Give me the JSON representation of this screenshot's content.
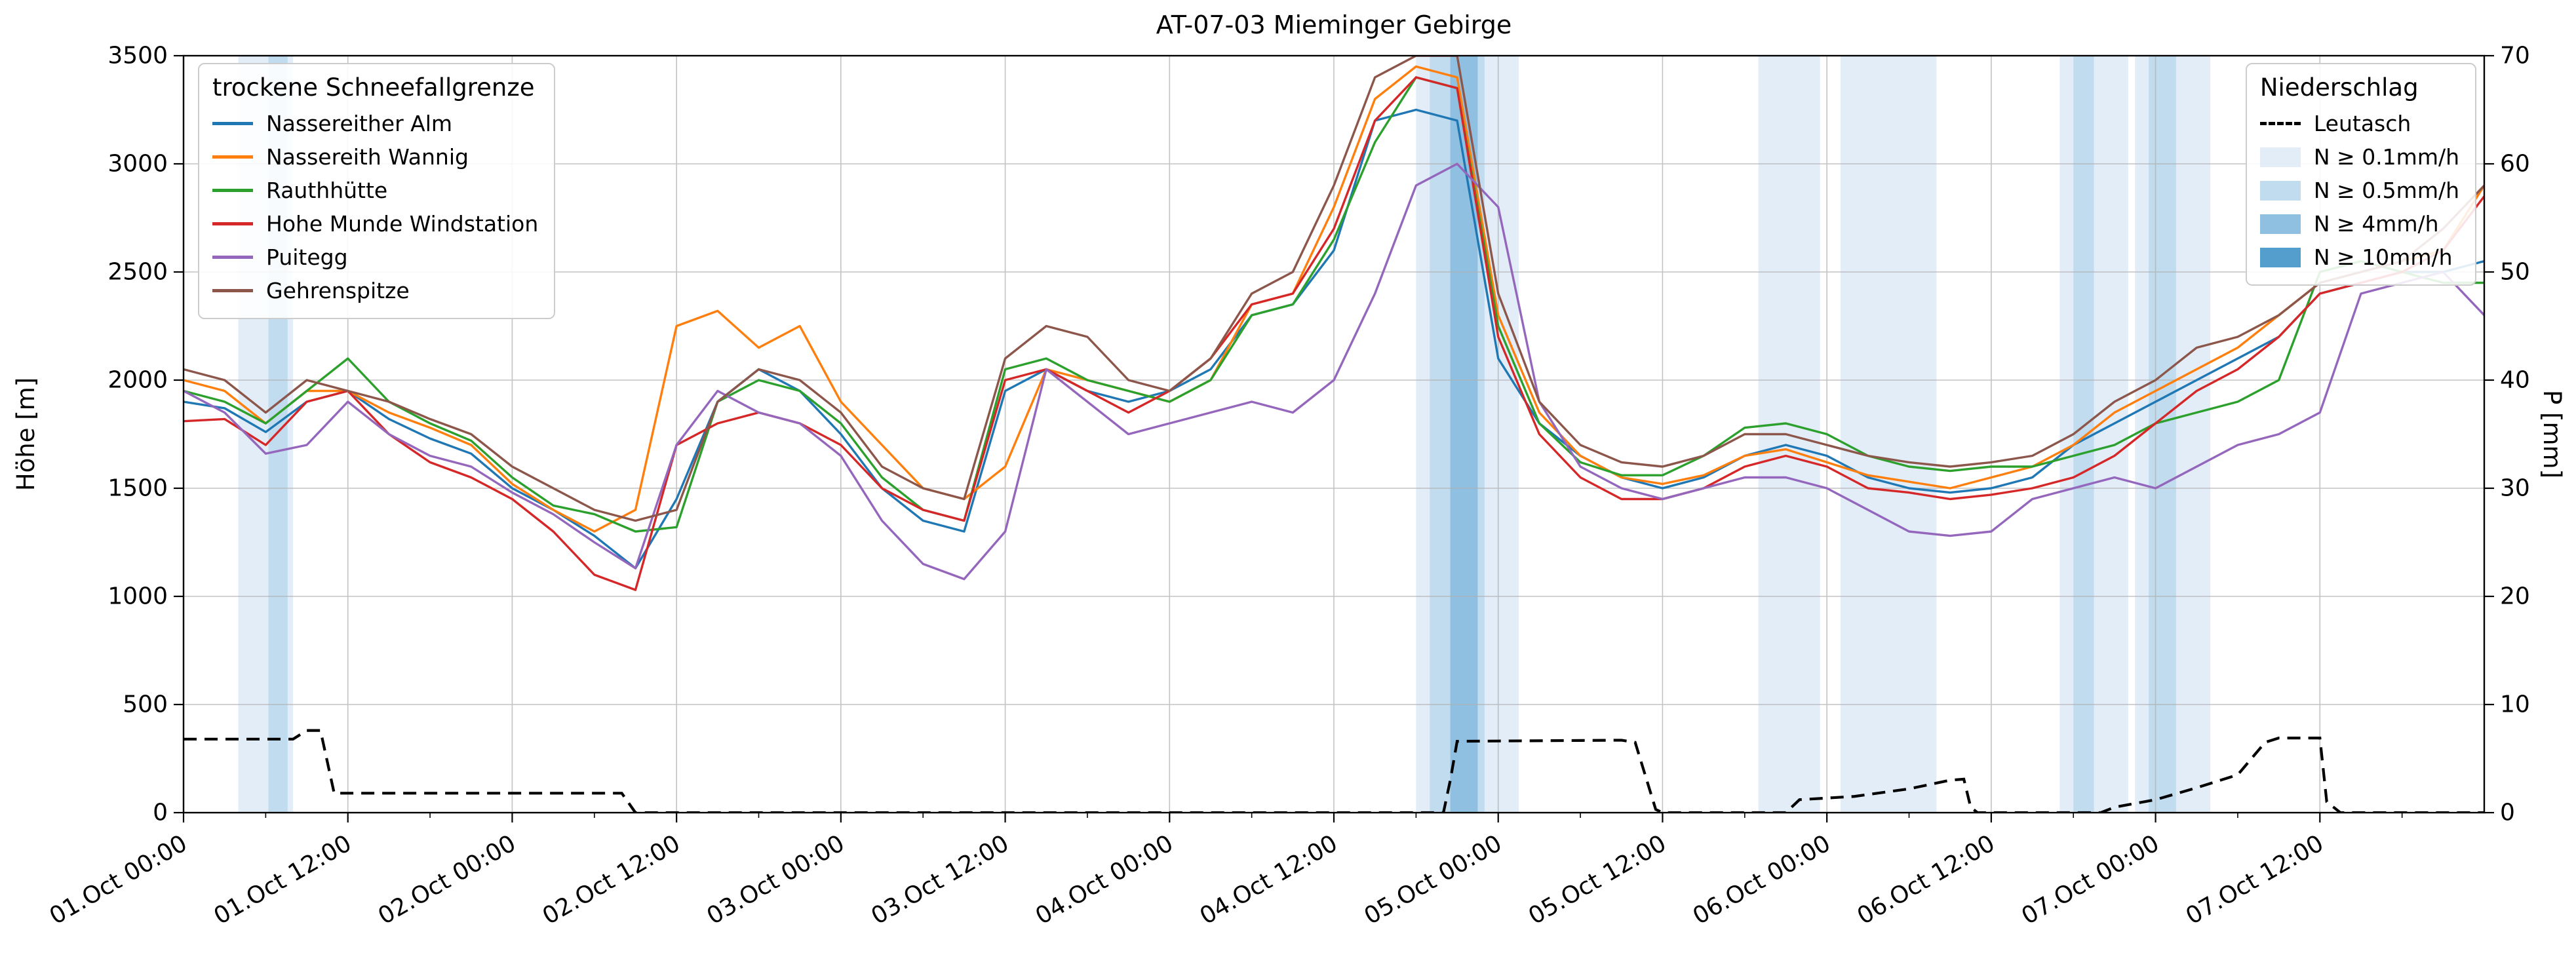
{
  "chart_data": {
    "type": "line",
    "title": "AT-07-03 Mieminger Gebirge",
    "ylabel_left": "Höhe [m]",
    "ylabel_right": "P [mm]",
    "ylim_left": [
      0,
      3500
    ],
    "ylim_right": [
      0,
      70
    ],
    "yticks_left": [
      0,
      500,
      1000,
      1500,
      2000,
      2500,
      3000,
      3500
    ],
    "yticks_right": [
      0,
      10,
      20,
      30,
      40,
      50,
      60,
      70
    ],
    "xlim_hours": [
      0,
      168
    ],
    "xtick_hours": [
      0,
      12,
      24,
      36,
      48,
      60,
      72,
      84,
      96,
      108,
      120,
      132,
      144,
      156
    ],
    "xtick_labels": [
      "01.Oct 00:00",
      "01.Oct 12:00",
      "02.Oct 00:00",
      "02.Oct 12:00",
      "03.Oct 00:00",
      "03.Oct 12:00",
      "04.Oct 00:00",
      "04.Oct 12:00",
      "05.Oct 00:00",
      "05.Oct 12:00",
      "06.Oct 00:00",
      "06.Oct 12:00",
      "07.Oct 00:00",
      "07.Oct 12:00"
    ],
    "grid": true,
    "legend_left": {
      "title": "trockene Schneefallgrenze"
    },
    "legend_right": {
      "title": "Niederschlag"
    },
    "x_hours": [
      0,
      3,
      6,
      9,
      12,
      15,
      18,
      21,
      24,
      27,
      30,
      33,
      36,
      39,
      42,
      45,
      48,
      51,
      54,
      57,
      60,
      63,
      66,
      69,
      72,
      75,
      78,
      81,
      84,
      87,
      90,
      93,
      96,
      99,
      102,
      105,
      108,
      111,
      114,
      117,
      120,
      123,
      126,
      129,
      132,
      135,
      138,
      141,
      144,
      147,
      150,
      153,
      156,
      159,
      162,
      165,
      168
    ],
    "series": [
      {
        "name": "Nassereither Alm",
        "color": "#1f77b4",
        "values": [
          1900,
          1870,
          1760,
          1900,
          1950,
          1820,
          1730,
          1660,
          1500,
          1400,
          1280,
          1130,
          1450,
          1900,
          2050,
          1950,
          1750,
          1500,
          1350,
          1300,
          1950,
          2050,
          1950,
          1900,
          1950,
          2050,
          2300,
          2350,
          2600,
          3200,
          3250,
          3200,
          2100,
          1800,
          1650,
          1550,
          1500,
          1550,
          1650,
          1700,
          1650,
          1550,
          1500,
          1480,
          1500,
          1550,
          1700,
          1800,
          1900,
          2000,
          2100,
          2200,
          2400,
          2450,
          2500,
          2500,
          2550
        ]
      },
      {
        "name": "Nassereith Wannig",
        "color": "#ff7f0e",
        "values": [
          2000,
          1950,
          1800,
          1950,
          1950,
          1850,
          1780,
          1700,
          1520,
          1400,
          1300,
          1400,
          2250,
          2320,
          2150,
          2250,
          1900,
          1700,
          1500,
          1450,
          1600,
          2050,
          2000,
          1950,
          1900,
          2000,
          2350,
          2400,
          2800,
          3300,
          3450,
          3400,
          2300,
          1850,
          1650,
          1550,
          1520,
          1560,
          1650,
          1680,
          1620,
          1560,
          1530,
          1500,
          1550,
          1600,
          1700,
          1850,
          1950,
          2050,
          2150,
          2300,
          2450,
          2500,
          2550,
          2600,
          2900
        ]
      },
      {
        "name": "Rauthhütte",
        "color": "#2ca02c",
        "values": [
          1950,
          1900,
          1800,
          1950,
          2100,
          1900,
          1800,
          1720,
          1550,
          1420,
          1380,
          1300,
          1320,
          1900,
          2000,
          1950,
          1800,
          1550,
          1400,
          1350,
          2050,
          2100,
          2000,
          1950,
          1900,
          2000,
          2300,
          2350,
          2650,
          3100,
          3400,
          3350,
          2250,
          1800,
          1620,
          1560,
          1560,
          1650,
          1780,
          1800,
          1750,
          1650,
          1600,
          1580,
          1600,
          1600,
          1650,
          1700,
          1800,
          1850,
          1900,
          2000,
          2500,
          2550,
          2500,
          2450,
          2450
        ]
      },
      {
        "name": "Hohe Munde Windstation",
        "color": "#d62728",
        "values": [
          1810,
          1820,
          1700,
          1900,
          1950,
          1750,
          1620,
          1550,
          1450,
          1300,
          1100,
          1030,
          1700,
          1800,
          1850,
          1800,
          1700,
          1500,
          1400,
          1350,
          2000,
          2050,
          1950,
          1850,
          1950,
          2100,
          2350,
          2400,
          2700,
          3200,
          3400,
          3350,
          2200,
          1750,
          1550,
          1450,
          1450,
          1500,
          1600,
          1650,
          1600,
          1500,
          1480,
          1450,
          1470,
          1500,
          1550,
          1650,
          1800,
          1950,
          2050,
          2200,
          2400,
          2450,
          2500,
          2600,
          2850
        ]
      },
      {
        "name": "Puitegg",
        "color": "#9467bd",
        "values": [
          1950,
          1850,
          1660,
          1700,
          1900,
          1750,
          1650,
          1600,
          1480,
          1380,
          1250,
          1130,
          1700,
          1950,
          1850,
          1800,
          1650,
          1350,
          1150,
          1080,
          1300,
          2050,
          1900,
          1750,
          1800,
          1850,
          1900,
          1850,
          2000,
          2400,
          2900,
          3000,
          2800,
          1900,
          1600,
          1500,
          1450,
          1500,
          1550,
          1550,
          1500,
          1400,
          1300,
          1280,
          1300,
          1450,
          1500,
          1550,
          1500,
          1600,
          1700,
          1750,
          1850,
          2400,
          2450,
          2500,
          2300
        ]
      },
      {
        "name": "Gehrenspitze",
        "color": "#8c564b",
        "values": [
          2050,
          2000,
          1850,
          2000,
          1950,
          1900,
          1820,
          1750,
          1600,
          1500,
          1400,
          1350,
          1400,
          1900,
          2050,
          2000,
          1850,
          1600,
          1500,
          1450,
          2100,
          2250,
          2200,
          2000,
          1950,
          2100,
          2400,
          2500,
          2900,
          3400,
          3500,
          3500,
          2400,
          1900,
          1700,
          1620,
          1600,
          1650,
          1750,
          1750,
          1700,
          1650,
          1620,
          1600,
          1620,
          1650,
          1750,
          1900,
          2000,
          2150,
          2200,
          2300,
          2450,
          2500,
          2550,
          2700,
          2900
        ]
      }
    ],
    "precip": {
      "name": "Leutasch",
      "color": "#000000",
      "style": "dashed",
      "x_hours": [
        0,
        8,
        9,
        10,
        11,
        32,
        33,
        92,
        92.5,
        93,
        105,
        106,
        107.5,
        108,
        117,
        118,
        122,
        126,
        129,
        130,
        130.5,
        131,
        140,
        141,
        144,
        147,
        150,
        151,
        152,
        153,
        156,
        156.5,
        157.5,
        168
      ],
      "values_mm": [
        6.8,
        6.8,
        7.6,
        7.6,
        1.8,
        1.8,
        0,
        0,
        3,
        6.6,
        6.7,
        6.5,
        0.3,
        0,
        0,
        1.2,
        1.5,
        2.2,
        3.0,
        3.1,
        0.5,
        0,
        0,
        0.5,
        1.2,
        2.3,
        3.5,
        5.0,
        6.5,
        6.9,
        6.9,
        1.0,
        0,
        0
      ]
    },
    "bands": [
      {
        "start": 4,
        "end": 8,
        "level": 1
      },
      {
        "start": 6.2,
        "end": 7.6,
        "level": 2
      },
      {
        "start": 90,
        "end": 97.5,
        "level": 1
      },
      {
        "start": 91,
        "end": 95,
        "level": 2
      },
      {
        "start": 92.5,
        "end": 94.5,
        "level": 3
      },
      {
        "start": 115,
        "end": 119.5,
        "level": 1
      },
      {
        "start": 121,
        "end": 128,
        "level": 1
      },
      {
        "start": 137,
        "end": 142,
        "level": 1
      },
      {
        "start": 138,
        "end": 139.5,
        "level": 2
      },
      {
        "start": 142.5,
        "end": 148,
        "level": 1
      },
      {
        "start": 143.5,
        "end": 145.5,
        "level": 2
      }
    ],
    "band_levels": [
      {
        "label": "N ≥ 0.1mm/h",
        "color": "#e2edf8"
      },
      {
        "label": "N ≥ 0.5mm/h",
        "color": "#c1dcef"
      },
      {
        "label": "N ≥ 4mm/h",
        "color": "#8fc0e2"
      },
      {
        "label": "N ≥ 10mm/h",
        "color": "#539ecc"
      }
    ]
  }
}
